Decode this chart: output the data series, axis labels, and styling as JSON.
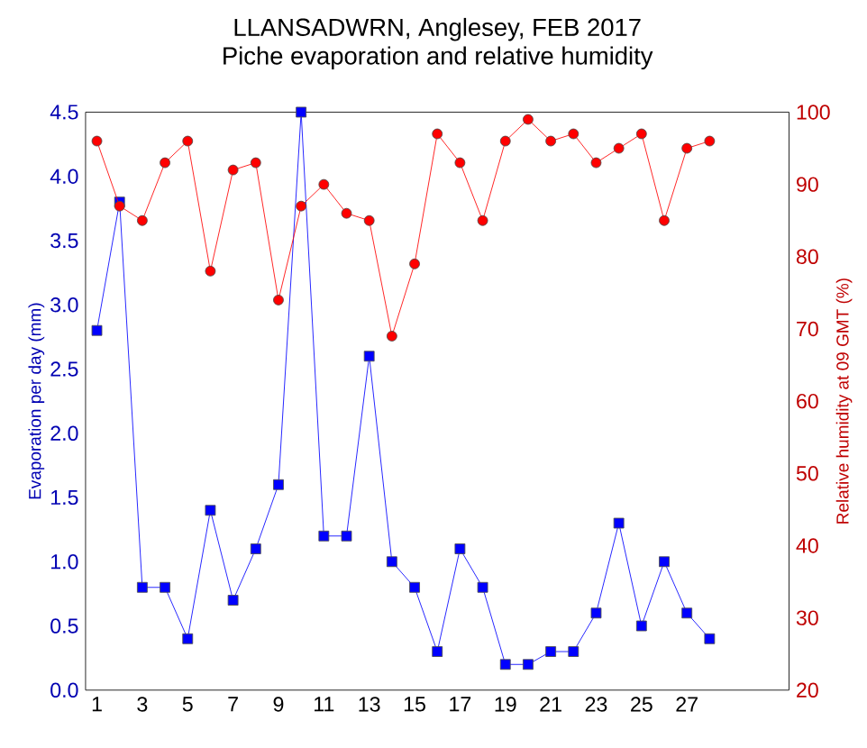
{
  "chart_data": {
    "type": "line",
    "title": "LLANSADWRN, Anglesey, FEB 2017",
    "subtitle": "Piche evaporation and relative humidity",
    "ylabel": "Evaporation per day (mm)",
    "y2label": "Relative humidity at 09 GMT (%)",
    "x": [
      1,
      2,
      3,
      4,
      5,
      6,
      7,
      8,
      9,
      10,
      11,
      12,
      13,
      14,
      15,
      16,
      17,
      18,
      19,
      20,
      21,
      22,
      23,
      24,
      25,
      26,
      27,
      28
    ],
    "xlim": [
      0.5,
      31.5
    ],
    "xticks": [
      1,
      3,
      5,
      7,
      9,
      11,
      13,
      15,
      17,
      19,
      21,
      23,
      25,
      27
    ],
    "ylim": [
      0,
      4.5
    ],
    "yticks": [
      {
        "value": 0,
        "label": "0.0"
      },
      {
        "value": 0.5,
        "label": "0.5"
      },
      {
        "value": 1,
        "label": "1.0"
      },
      {
        "value": 1.5,
        "label": "1.5"
      },
      {
        "value": 2,
        "label": "2.0"
      },
      {
        "value": 2.5,
        "label": "2.5"
      },
      {
        "value": 3,
        "label": "3.0"
      },
      {
        "value": 3.5,
        "label": "3.5"
      },
      {
        "value": 4,
        "label": "4.0"
      },
      {
        "value": 4.5,
        "label": "4.5"
      }
    ],
    "y2lim": [
      20,
      100
    ],
    "y2ticks": [
      20,
      30,
      40,
      50,
      60,
      70,
      80,
      90,
      100
    ],
    "grid": false,
    "series": [
      {
        "color": "#0000ff",
        "marker": "square",
        "values": [
          2.8,
          3.8,
          0.8,
          0.8,
          0.4,
          1.4,
          0.7,
          1.1,
          1.6,
          4.5,
          1.2,
          1.2,
          2.6,
          1.0,
          0.8,
          0.3,
          1.1,
          0.8,
          0.2,
          0.2,
          0.3,
          0.3,
          0.6,
          1.3,
          0.5,
          1.0,
          0.6,
          0.4
        ]
      },
      {
        "color": "#ff0000",
        "marker": "circle",
        "axis": "y2",
        "values": [
          96,
          87,
          85,
          93,
          96,
          78,
          92,
          93,
          74,
          87,
          90,
          86,
          85,
          69,
          79,
          97,
          93,
          85,
          96,
          99,
          96,
          97,
          93,
          95,
          97,
          85,
          95,
          96
        ]
      }
    ]
  }
}
